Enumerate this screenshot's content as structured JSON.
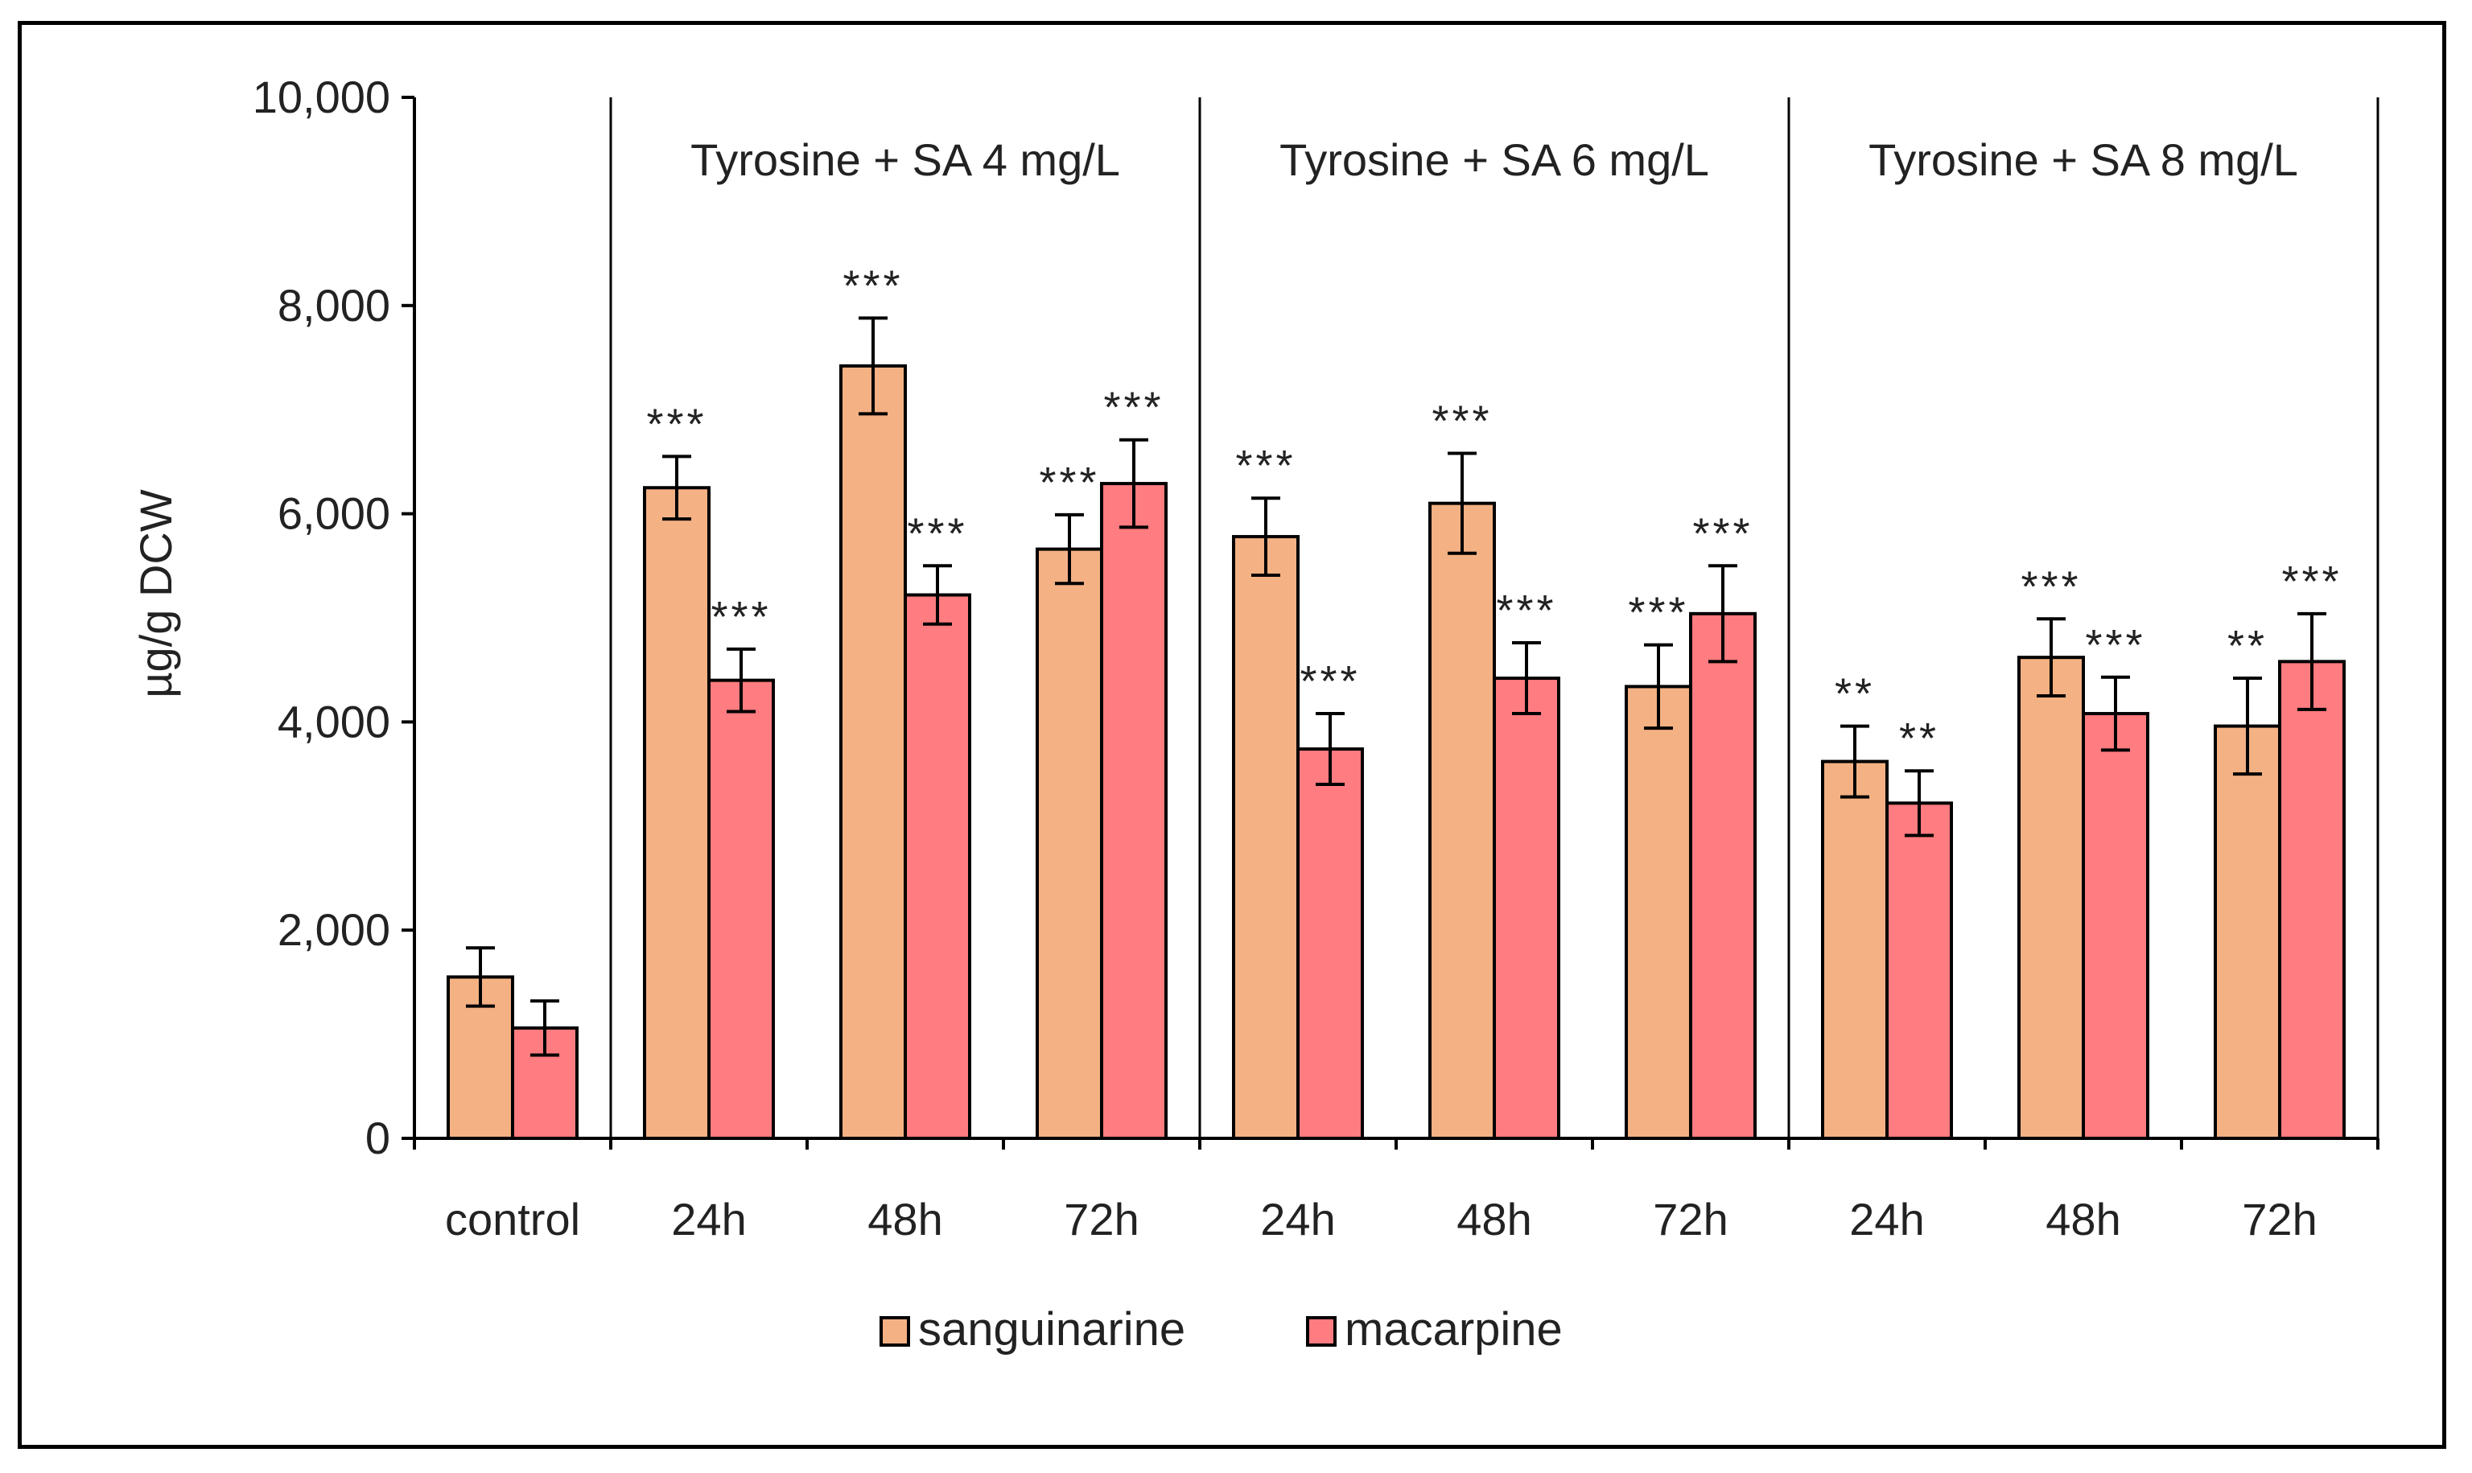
{
  "chart_data": {
    "type": "bar",
    "ylabel": "µg/g DCW",
    "ylim": [
      0,
      10000
    ],
    "yticks": [
      "0",
      "2,000",
      "4,000",
      "6,000",
      "8,000",
      "10,000"
    ],
    "categories": [
      "control",
      "24h",
      "48h",
      "72h",
      "24h",
      "48h",
      "72h",
      "24h",
      "48h",
      "72h"
    ],
    "groups": [
      {
        "label": "",
        "categories": [
          0
        ]
      },
      {
        "label": "Tyrosine + SA 4 mg/L",
        "categories": [
          1,
          2,
          3
        ]
      },
      {
        "label": "Tyrosine + SA 6 mg/L",
        "categories": [
          4,
          5,
          6
        ]
      },
      {
        "label": "Tyrosine + SA 8 mg/L",
        "categories": [
          7,
          8,
          9
        ]
      }
    ],
    "series": [
      {
        "name": "sanguinarine",
        "color": "#F4B183",
        "values": [
          1550,
          6250,
          7420,
          5660,
          5780,
          6100,
          4340,
          3620,
          4620,
          3960
        ],
        "errors": [
          280,
          300,
          460,
          330,
          370,
          480,
          400,
          340,
          370,
          460
        ],
        "significance": [
          "",
          "***",
          "***",
          "***",
          "***",
          "***",
          "***",
          "**",
          "***",
          "**"
        ]
      },
      {
        "name": "macarpine",
        "color": "#FF7C80",
        "values": [
          1060,
          4400,
          5220,
          6290,
          3740,
          4420,
          5040,
          3220,
          4080,
          4580
        ],
        "errors": [
          260,
          300,
          280,
          420,
          340,
          340,
          460,
          310,
          350,
          460
        ],
        "significance": [
          "",
          "***",
          "***",
          "***",
          "***",
          "***",
          "***",
          "**",
          "***",
          "***"
        ]
      }
    ],
    "legend_position": "bottom-center",
    "grid": false
  }
}
